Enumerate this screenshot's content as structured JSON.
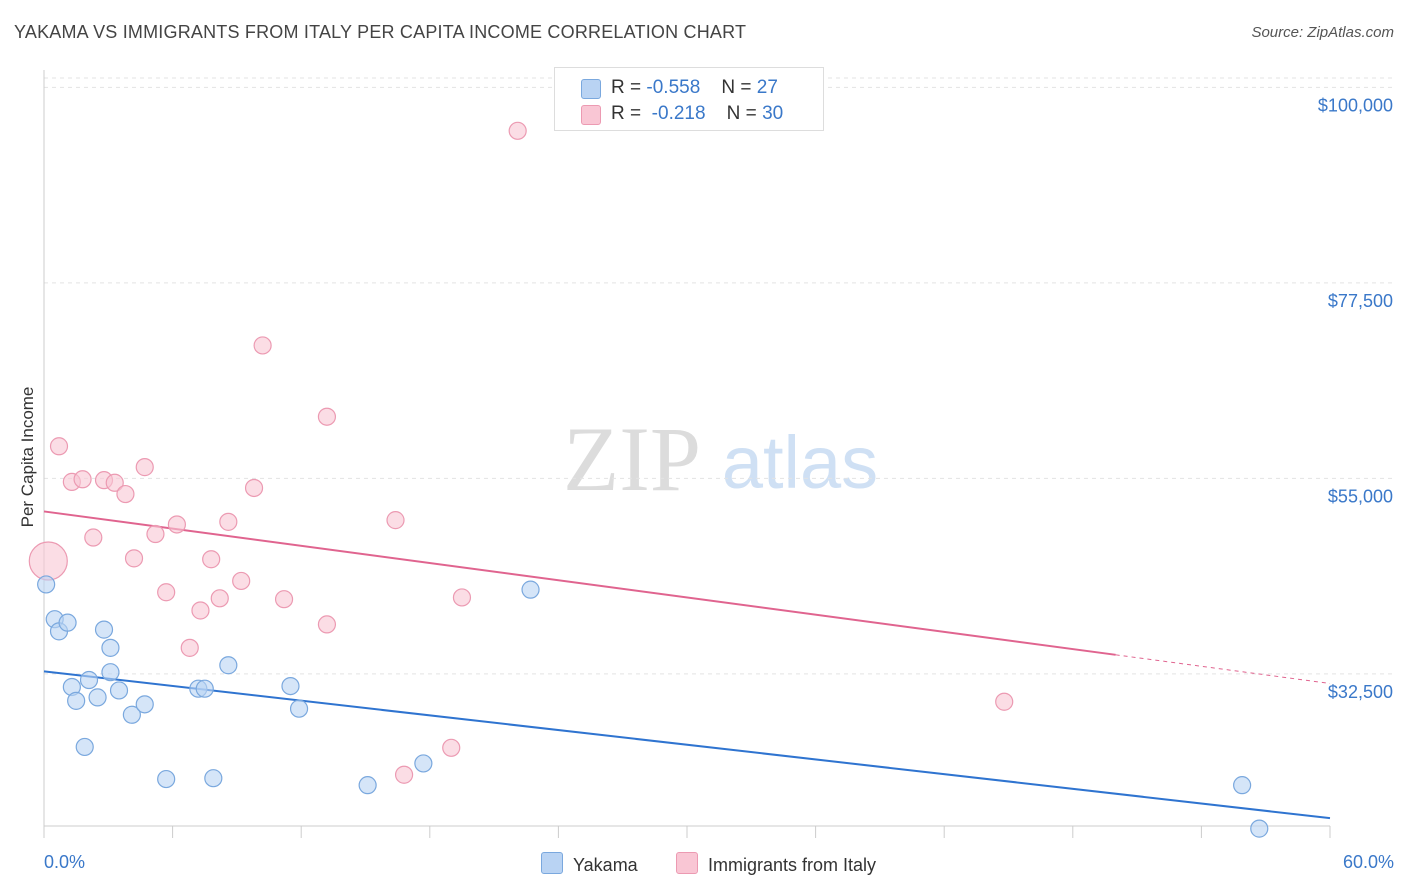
{
  "title": "YAKAMA VS IMMIGRANTS FROM ITALY PER CAPITA INCOME CORRELATION CHART",
  "source": "Source: ZipAtlas.com",
  "watermark": {
    "zip": "ZIP",
    "atlas": "atlas"
  },
  "legend": {
    "rows": [
      {
        "r_label": "R =",
        "r_value": "-0.558",
        "n_label": "N =",
        "n_value": "27"
      },
      {
        "r_label": "R =",
        "r_value": "-0.218",
        "n_label": "N =",
        "n_value": "30"
      }
    ]
  },
  "colors": {
    "yakama_fill": "#b9d3f3",
    "yakama_stroke": "#7aa8de",
    "yakama_line": "#2f74d0",
    "italy_fill": "#f9c6d4",
    "italy_stroke": "#ec9ab2",
    "italy_line": "#e0648f",
    "axis_label": "#3a78c9",
    "grid": "#e3e3e3"
  },
  "chart_data": {
    "type": "scatter",
    "title": "YAKAMA VS IMMIGRANTS FROM ITALY PER CAPITA INCOME CORRELATION CHART",
    "xlabel": "",
    "ylabel": "Per Capita Income",
    "x_min_label": "0.0%",
    "x_max_label": "60.0%",
    "xlim": [
      0,
      60
    ],
    "ylim": [
      15000,
      102000
    ],
    "y_ticks": [
      32500,
      55000,
      77500,
      100000
    ],
    "y_tick_labels": [
      "$32,500",
      "$55,000",
      "$77,500",
      "$100,000"
    ],
    "x_ticks": [
      0,
      6,
      12,
      18,
      24,
      30,
      36,
      42,
      48,
      54,
      60
    ],
    "grid": true,
    "series": [
      {
        "name": "Yakama",
        "points": [
          [
            0.1,
            42800
          ],
          [
            0.5,
            38800
          ],
          [
            0.7,
            37400
          ],
          [
            1.1,
            38400
          ],
          [
            1.3,
            31000
          ],
          [
            1.5,
            29400
          ],
          [
            1.9,
            24100
          ],
          [
            2.1,
            31800
          ],
          [
            2.5,
            29800
          ],
          [
            2.8,
            37600
          ],
          [
            3.1,
            35500
          ],
          [
            3.1,
            32700
          ],
          [
            3.5,
            30600
          ],
          [
            4.1,
            27800
          ],
          [
            4.7,
            29000
          ],
          [
            5.7,
            20400
          ],
          [
            7.2,
            30800
          ],
          [
            7.5,
            30800
          ],
          [
            7.9,
            20500
          ],
          [
            8.6,
            33500
          ],
          [
            11.5,
            31100
          ],
          [
            11.9,
            28500
          ],
          [
            15.1,
            19700
          ],
          [
            17.7,
            22200
          ],
          [
            22.7,
            42200
          ],
          [
            55.9,
            19700
          ],
          [
            56.7,
            14700
          ]
        ],
        "trend": {
          "x": [
            0,
            60
          ],
          "y": [
            32800,
            15900
          ]
        }
      },
      {
        "name": "Immigrants from Italy",
        "points": [
          [
            0.2,
            45500
          ],
          [
            0.7,
            58700
          ],
          [
            1.3,
            54600
          ],
          [
            1.8,
            54900
          ],
          [
            2.3,
            48200
          ],
          [
            2.8,
            54800
          ],
          [
            3.3,
            54500
          ],
          [
            3.8,
            53200
          ],
          [
            4.2,
            45800
          ],
          [
            4.7,
            56300
          ],
          [
            5.2,
            48600
          ],
          [
            5.7,
            41900
          ],
          [
            6.2,
            49700
          ],
          [
            6.8,
            35500
          ],
          [
            7.3,
            39800
          ],
          [
            7.8,
            45700
          ],
          [
            8.2,
            41200
          ],
          [
            8.6,
            50000
          ],
          [
            9.2,
            43200
          ],
          [
            9.8,
            53900
          ],
          [
            10.2,
            70300
          ],
          [
            11.2,
            41100
          ],
          [
            13.2,
            62100
          ],
          [
            13.2,
            38200
          ],
          [
            16.4,
            50200
          ],
          [
            16.8,
            20900
          ],
          [
            19.0,
            24000
          ],
          [
            19.5,
            41300
          ],
          [
            22.1,
            95000
          ],
          [
            44.8,
            29300
          ]
        ],
        "trend": {
          "x": [
            0,
            50
          ],
          "y": [
            51200,
            34700
          ]
        },
        "trend_dashed": {
          "x": [
            50,
            60
          ],
          "y": [
            34700,
            31400
          ]
        }
      }
    ]
  },
  "bottom_legend": [
    "Yakama",
    "Immigrants from Italy"
  ]
}
